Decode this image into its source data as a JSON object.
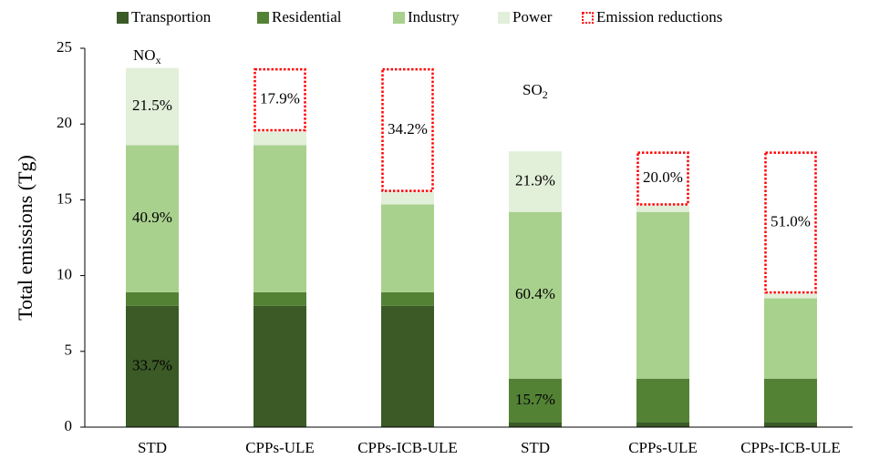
{
  "chart_data": {
    "type": "stacked_bar",
    "y_label": "Total emissions (Tg)",
    "categories": [
      "STD",
      "CPPs-ULE",
      "CPPs-ICB-ULE",
      "STD",
      "CPPs-ULE",
      "CPPs-ICB-ULE"
    ],
    "series": [
      {
        "name": "Transportion",
        "color": "#3b5a26",
        "values": [
          8.0,
          8.0,
          8.0,
          0.3,
          0.3,
          0.3
        ],
        "share_labels": [
          "33.7%",
          null,
          null,
          null,
          null,
          null
        ]
      },
      {
        "name": "Residential",
        "color": "#548235",
        "values": [
          0.9,
          0.9,
          0.9,
          2.9,
          2.9,
          2.9
        ],
        "share_labels": [
          null,
          null,
          null,
          "15.7%",
          null,
          null
        ]
      },
      {
        "name": "Industry",
        "color": "#a9d18e",
        "values": [
          9.7,
          9.7,
          5.8,
          11.0,
          11.0,
          5.3
        ],
        "share_labels": [
          "40.9%",
          null,
          null,
          "60.4%",
          null,
          null
        ]
      },
      {
        "name": "Power",
        "color": "#e2efd9",
        "values": [
          5.1,
          0.9,
          0.8,
          4.0,
          0.4,
          0.3
        ],
        "share_labels": [
          "21.5%",
          null,
          null,
          "21.9%",
          null,
          null
        ]
      },
      {
        "name": "Emission reductions",
        "color": "#ff0000",
        "style": "dotted-outline",
        "values": [
          null,
          4.2,
          8.2,
          null,
          3.6,
          9.4
        ],
        "share_labels": [
          null,
          "17.9%",
          "34.2%",
          null,
          "20.0%",
          "51.0%"
        ]
      }
    ],
    "annotations": [
      {
        "text": "NO",
        "sub": "x"
      },
      {
        "text": "SO",
        "sub": "2"
      }
    ],
    "ylim": [
      0,
      25
    ],
    "yticks": [
      0,
      5,
      10,
      15,
      20,
      25
    ],
    "grid": false
  }
}
